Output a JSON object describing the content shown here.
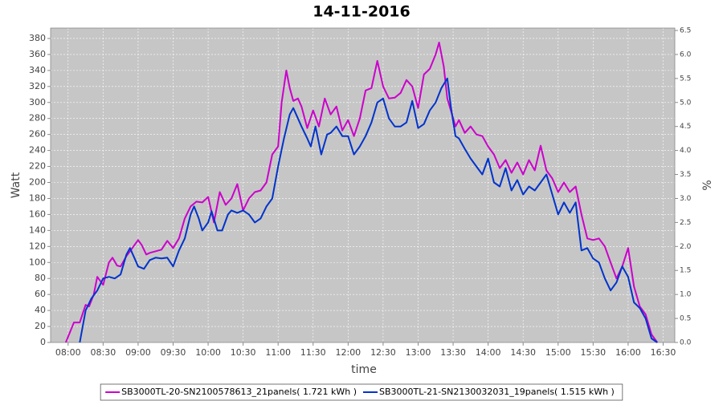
{
  "chart_data": {
    "type": "line",
    "title": "14-11-2016",
    "x_label": "time",
    "y_label": "Watt",
    "y2_label": "%",
    "xlim": [
      "07:45",
      "16:40"
    ],
    "xticks": [
      "08:00",
      "08:30",
      "09:00",
      "09:30",
      "10:00",
      "10:30",
      "11:00",
      "11:30",
      "12:00",
      "12:30",
      "13:00",
      "13:30",
      "14:00",
      "14:30",
      "15:00",
      "15:30",
      "16:00",
      "16:30"
    ],
    "ylim": [
      0,
      393
    ],
    "yticks": [
      0,
      20,
      40,
      60,
      80,
      100,
      120,
      140,
      160,
      180,
      200,
      220,
      240,
      260,
      280,
      300,
      320,
      340,
      360,
      380
    ],
    "y2lim": [
      0,
      6.55
    ],
    "y2ticks": [
      {
        "value": 0,
        "label": "0.0"
      },
      0.5,
      {
        "value": 1,
        "label": "1.0"
      },
      1.5,
      {
        "value": 2,
        "label": "2.0"
      },
      2.5,
      {
        "value": 3,
        "label": "3.0"
      },
      3.5,
      {
        "value": 4,
        "label": "4.0"
      },
      4.5,
      {
        "value": 5,
        "label": "5.0"
      },
      5.5,
      {
        "value": 6,
        "label": "6.0"
      },
      6.5
    ],
    "grid": true,
    "legend": "bottom",
    "series": [
      {
        "name": "SB3000TL-20-SN2100578613_21panels( 1.721 kWh )",
        "color": "#cc00cc",
        "x": [
          "07:58",
          "08:05",
          "08:10",
          "08:15",
          "08:18",
          "08:22",
          "08:25",
          "08:30",
          "08:35",
          "08:38",
          "08:42",
          "08:45",
          "08:50",
          "08:55",
          "09:00",
          "09:03",
          "09:07",
          "09:10",
          "09:15",
          "09:20",
          "09:25",
          "09:30",
          "09:35",
          "09:40",
          "09:45",
          "09:50",
          "09:55",
          "10:00",
          "10:05",
          "10:10",
          "10:15",
          "10:20",
          "10:25",
          "10:30",
          "10:35",
          "10:40",
          "10:45",
          "10:50",
          "10:55",
          "11:00",
          "11:03",
          "11:07",
          "11:10",
          "11:13",
          "11:17",
          "11:20",
          "11:25",
          "11:30",
          "11:35",
          "11:40",
          "11:45",
          "11:50",
          "11:55",
          "12:00",
          "12:05",
          "12:10",
          "12:15",
          "12:20",
          "12:25",
          "12:30",
          "12:35",
          "12:40",
          "12:45",
          "12:50",
          "12:55",
          "13:00",
          "13:05",
          "13:10",
          "13:15",
          "13:18",
          "13:22",
          "13:25",
          "13:28",
          "13:32",
          "13:35",
          "13:40",
          "13:45",
          "13:50",
          "13:55",
          "14:00",
          "14:05",
          "14:10",
          "14:15",
          "14:20",
          "14:25",
          "14:30",
          "14:35",
          "14:40",
          "14:45",
          "14:50",
          "14:55",
          "15:00",
          "15:05",
          "15:10",
          "15:15",
          "15:20",
          "15:25",
          "15:30",
          "15:35",
          "15:40",
          "15:45",
          "15:50",
          "15:55",
          "16:00",
          "16:05",
          "16:10",
          "16:15",
          "16:20",
          "16:25"
        ],
        "values": [
          0,
          25,
          25,
          47,
          45,
          60,
          82,
          72,
          100,
          106,
          96,
          95,
          108,
          118,
          128,
          122,
          110,
          112,
          114,
          116,
          127,
          118,
          130,
          155,
          170,
          176,
          175,
          182,
          150,
          188,
          172,
          180,
          198,
          165,
          180,
          188,
          190,
          200,
          235,
          245,
          300,
          340,
          318,
          302,
          305,
          295,
          268,
          290,
          270,
          305,
          285,
          295,
          265,
          278,
          258,
          280,
          315,
          318,
          352,
          320,
          305,
          306,
          312,
          328,
          320,
          293,
          335,
          342,
          360,
          375,
          345,
          305,
          290,
          270,
          278,
          262,
          270,
          260,
          258,
          245,
          235,
          218,
          228,
          212,
          225,
          210,
          228,
          215,
          246,
          215,
          205,
          188,
          200,
          188,
          195,
          160,
          130,
          128,
          130,
          120,
          100,
          80,
          95,
          118,
          70,
          45,
          35,
          10,
          0
        ]
      },
      {
        "name": "SB3000TL-21-SN2130032031_19panels( 1.515 kWh )",
        "color": "#0033cc",
        "x": [
          "08:10",
          "08:15",
          "08:20",
          "08:25",
          "08:30",
          "08:35",
          "08:40",
          "08:45",
          "08:50",
          "08:53",
          "08:57",
          "09:00",
          "09:05",
          "09:10",
          "09:15",
          "09:20",
          "09:25",
          "09:30",
          "09:35",
          "09:40",
          "09:45",
          "09:48",
          "09:52",
          "09:55",
          "10:00",
          "10:03",
          "10:08",
          "10:12",
          "10:17",
          "10:20",
          "10:25",
          "10:30",
          "10:35",
          "10:40",
          "10:45",
          "10:50",
          "10:55",
          "11:00",
          "11:05",
          "11:10",
          "11:13",
          "11:17",
          "11:20",
          "11:25",
          "11:28",
          "11:32",
          "11:37",
          "11:42",
          "11:45",
          "11:50",
          "11:55",
          "12:00",
          "12:05",
          "12:10",
          "12:15",
          "12:20",
          "12:25",
          "12:30",
          "12:35",
          "12:40",
          "12:45",
          "12:50",
          "12:55",
          "13:00",
          "13:05",
          "13:10",
          "13:15",
          "13:20",
          "13:25",
          "13:28",
          "13:32",
          "13:35",
          "13:40",
          "13:45",
          "13:50",
          "13:55",
          "14:00",
          "14:05",
          "14:10",
          "14:15",
          "14:20",
          "14:25",
          "14:30",
          "14:35",
          "14:40",
          "14:45",
          "14:50",
          "14:55",
          "15:00",
          "15:05",
          "15:10",
          "15:15",
          "15:20",
          "15:25",
          "15:30",
          "15:35",
          "15:40",
          "15:45",
          "15:50",
          "15:55",
          "16:00",
          "16:05",
          "16:10",
          "16:15",
          "16:20",
          "16:25"
        ],
        "values": [
          0,
          40,
          55,
          65,
          80,
          82,
          80,
          85,
          110,
          118,
          105,
          95,
          92,
          103,
          106,
          105,
          106,
          95,
          115,
          130,
          160,
          170,
          155,
          140,
          150,
          164,
          140,
          140,
          160,
          165,
          162,
          165,
          160,
          150,
          155,
          170,
          180,
          220,
          255,
          285,
          293,
          280,
          270,
          255,
          245,
          270,
          235,
          260,
          262,
          270,
          258,
          258,
          235,
          245,
          258,
          275,
          300,
          305,
          280,
          270,
          270,
          275,
          302,
          268,
          273,
          290,
          300,
          318,
          330,
          295,
          258,
          255,
          242,
          230,
          220,
          210,
          230,
          200,
          195,
          218,
          190,
          203,
          185,
          195,
          190,
          200,
          210,
          185,
          160,
          175,
          162,
          175,
          115,
          118,
          105,
          100,
          80,
          65,
          75,
          95,
          82,
          50,
          43,
          30,
          5,
          0
        ]
      }
    ]
  }
}
